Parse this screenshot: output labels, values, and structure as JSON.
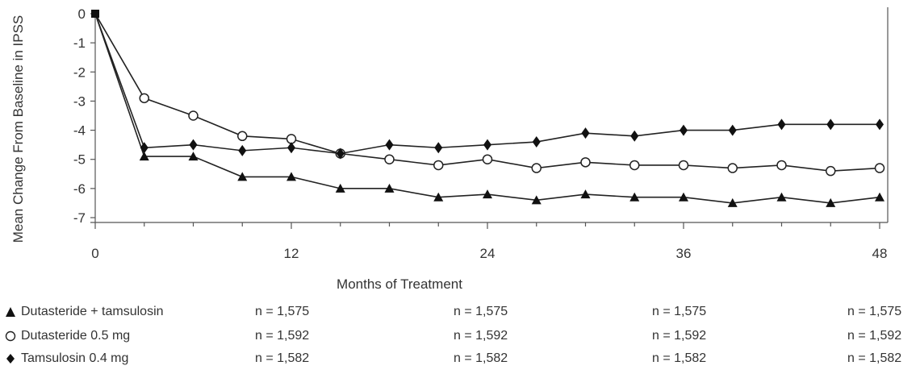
{
  "chart_data": {
    "type": "line",
    "xlabel": "Months of Treatment",
    "ylabel": "Mean Change From Baseline in IPSS",
    "xlim": [
      0,
      48
    ],
    "ylim": [
      -7,
      0
    ],
    "xticks": [
      "0",
      "12",
      "24",
      "36",
      "48"
    ],
    "yticks": [
      "0",
      "-1",
      "-2",
      "-3",
      "-4",
      "-5",
      "-6",
      "-7"
    ],
    "grid": false,
    "series": [
      {
        "name": "Dutasteride + tamsulosin",
        "marker": "triangle",
        "n": "n = 1,575",
        "x": [
          0,
          3,
          6,
          9,
          12,
          15,
          18,
          21,
          24,
          27,
          30,
          33,
          36,
          39,
          42,
          45,
          48
        ],
        "values": [
          0,
          -4.9,
          -4.9,
          -5.6,
          -5.6,
          -6.0,
          -6.0,
          -6.3,
          -6.2,
          -6.4,
          -6.2,
          -6.3,
          -6.3,
          -6.5,
          -6.3,
          -6.5,
          -6.3
        ]
      },
      {
        "name": "Dutasteride 0.5 mg",
        "marker": "circle",
        "n": "n = 1,592",
        "x": [
          0,
          3,
          6,
          9,
          12,
          15,
          18,
          21,
          24,
          27,
          30,
          33,
          36,
          39,
          42,
          45,
          48
        ],
        "values": [
          0,
          -2.9,
          -3.5,
          -4.2,
          -4.3,
          -4.8,
          -5.0,
          -5.2,
          -5.0,
          -5.3,
          -5.1,
          -5.2,
          -5.2,
          -5.3,
          -5.2,
          -5.4,
          -5.3
        ]
      },
      {
        "name": "Tamsulosin 0.4 mg",
        "marker": "diamond",
        "n": "n = 1,582",
        "x": [
          0,
          3,
          6,
          9,
          12,
          15,
          18,
          21,
          24,
          27,
          30,
          33,
          36,
          39,
          42,
          45,
          48
        ],
        "values": [
          0,
          -4.6,
          -4.5,
          -4.7,
          -4.6,
          -4.8,
          -4.5,
          -4.6,
          -4.5,
          -4.4,
          -4.1,
          -4.2,
          -4.0,
          -4.0,
          -3.8,
          -3.8,
          -3.8
        ]
      }
    ],
    "colors": {
      "line": "#222222",
      "marker_fill": "#111111",
      "open_marker_fill": "#ffffff",
      "axis": "#555555"
    }
  }
}
